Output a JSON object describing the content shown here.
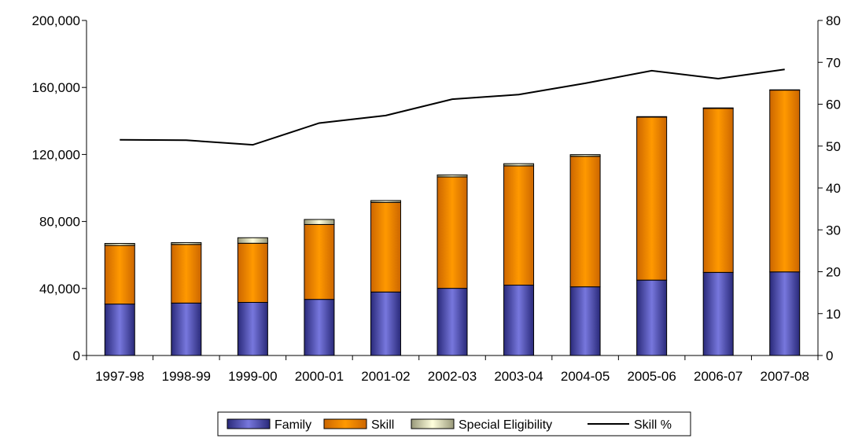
{
  "chart_data": {
    "type": "bar",
    "stacked": true,
    "categories": [
      "1997-98",
      "1998-99",
      "1999-00",
      "2000-01",
      "2001-02",
      "2002-03",
      "2003-04",
      "2004-05",
      "2005-06",
      "2006-07",
      "2007-08"
    ],
    "series": [
      {
        "name": "Family",
        "color": "#6666cc",
        "values": [
          30700,
          31300,
          31700,
          33500,
          37900,
          40100,
          42000,
          41000,
          45000,
          49600,
          49900
        ]
      },
      {
        "name": "Skill",
        "color": "#ff9900",
        "values": [
          35000,
          35000,
          35300,
          44700,
          53500,
          66500,
          71200,
          77900,
          97300,
          97900,
          108500
        ]
      },
      {
        "name": "Special Eligibility",
        "color": "#ffffcc",
        "values": [
          1200,
          1100,
          3300,
          3000,
          1100,
          1200,
          1300,
          1000,
          300,
          300,
          200
        ]
      }
    ],
    "line_series": {
      "name": "Skill %",
      "color": "#000000",
      "axis": "right",
      "values": [
        51.5,
        51.4,
        50.3,
        55.5,
        57.3,
        61.2,
        62.3,
        65.0,
        68.0,
        66.1,
        68.3
      ]
    },
    "ylim": [
      0,
      200000
    ],
    "y2lim": [
      0,
      80
    ],
    "y_ticks": [
      "0",
      "40,000",
      "80,000",
      "120,000",
      "160,000",
      "200,000"
    ],
    "y2_ticks": [
      "0",
      "10",
      "20",
      "30",
      "40",
      "50",
      "60",
      "70",
      "80"
    ],
    "legend_position": "bottom",
    "grid": false
  }
}
